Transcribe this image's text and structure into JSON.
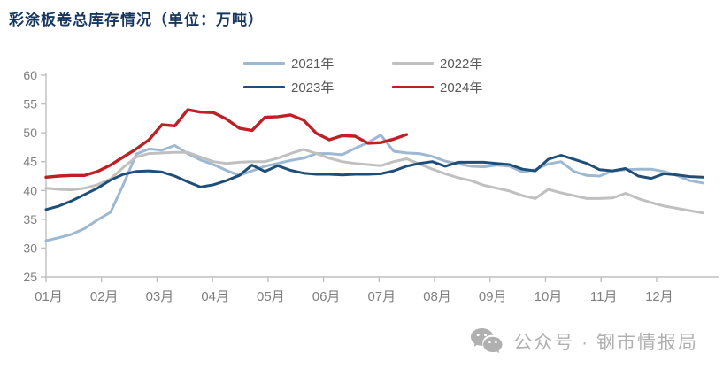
{
  "title": "彩涂板卷总库存情况（单位：万吨）",
  "footer": {
    "icon": "wechat-icon",
    "text": "公众号 · 钢市情报局"
  },
  "colors": {
    "title": "#17375e",
    "axis_line": "#bfbfbf",
    "axis_label": "#7f7f7f",
    "legend_text": "#595959",
    "footer": "#b0b0b0"
  },
  "chart_data": {
    "type": "line",
    "title": "彩涂板卷总库存情况（单位：万吨）",
    "xlabel": "",
    "ylabel": "",
    "grid": false,
    "legend_position": "top-center",
    "x_axis": {
      "tick_labels": [
        "01月",
        "02月",
        "03月",
        "04月",
        "05月",
        "06月",
        "07月",
        "08月",
        "09月",
        "10月",
        "11月",
        "12月"
      ],
      "note": "weekly data points, ~4.33 per month"
    },
    "y_axis": {
      "min": 25,
      "max": 60,
      "tick_step": 5
    },
    "series": [
      {
        "name": "2021年",
        "color": "#9db8d2",
        "values": [
          31.3,
          31.8,
          32.4,
          33.4,
          34.9,
          36.2,
          41.0,
          46.3,
          47.2,
          47.0,
          47.8,
          46.4,
          45.3,
          44.5,
          43.5,
          42.6,
          43.4,
          44.2,
          44.7,
          45.2,
          45.6,
          46.4,
          46.4,
          46.2,
          47.3,
          48.3,
          49.6,
          46.8,
          46.5,
          46.4,
          45.9,
          45.1,
          44.6,
          44.2,
          44.1,
          44.4,
          44.2,
          43.2,
          43.6,
          44.6,
          45.0,
          43.3,
          42.6,
          42.5,
          43.4,
          43.6,
          43.7,
          43.7,
          43.3,
          42.6,
          41.7,
          41.3
        ]
      },
      {
        "name": "2022年",
        "color": "#c0c0c0",
        "values": [
          40.4,
          40.2,
          40.1,
          40.4,
          41.0,
          42.0,
          44.0,
          45.8,
          46.4,
          46.5,
          46.6,
          46.6,
          45.8,
          45.0,
          44.7,
          44.9,
          45.0,
          45.0,
          45.6,
          46.4,
          47.1,
          46.4,
          45.6,
          45.0,
          44.7,
          44.5,
          44.3,
          45.0,
          45.5,
          44.6,
          43.7,
          42.9,
          42.2,
          41.7,
          40.9,
          40.4,
          39.9,
          39.1,
          38.6,
          40.2,
          39.6,
          39.1,
          38.6,
          38.6,
          38.7,
          39.5,
          38.6,
          37.9,
          37.3,
          36.9,
          36.5,
          36.1
        ]
      },
      {
        "name": "2023年",
        "color": "#1f4e79",
        "values": [
          36.7,
          37.3,
          38.2,
          39.3,
          40.4,
          41.8,
          42.8,
          43.3,
          43.4,
          43.2,
          42.5,
          41.5,
          40.6,
          41.0,
          41.7,
          42.6,
          44.4,
          43.3,
          44.3,
          43.5,
          43.0,
          42.8,
          42.8,
          42.7,
          42.8,
          42.8,
          42.9,
          43.4,
          44.2,
          44.7,
          45.0,
          44.2,
          44.9,
          44.9,
          44.9,
          44.7,
          44.5,
          43.7,
          43.4,
          45.4,
          46.1,
          45.4,
          44.7,
          43.6,
          43.4,
          43.8,
          42.5,
          42.1,
          42.9,
          42.7,
          42.4,
          42.3
        ]
      },
      {
        "name": "2024年",
        "color": "#be2026",
        "values": [
          42.3,
          42.5,
          42.6,
          42.6,
          43.3,
          44.4,
          45.8,
          47.2,
          48.8,
          51.4,
          51.2,
          54.0,
          53.6,
          53.5,
          52.4,
          50.8,
          50.4,
          52.7,
          52.8,
          53.1,
          52.2,
          49.9,
          48.8,
          49.5,
          49.4,
          48.2,
          48.3,
          48.9,
          49.7
        ]
      }
    ]
  }
}
